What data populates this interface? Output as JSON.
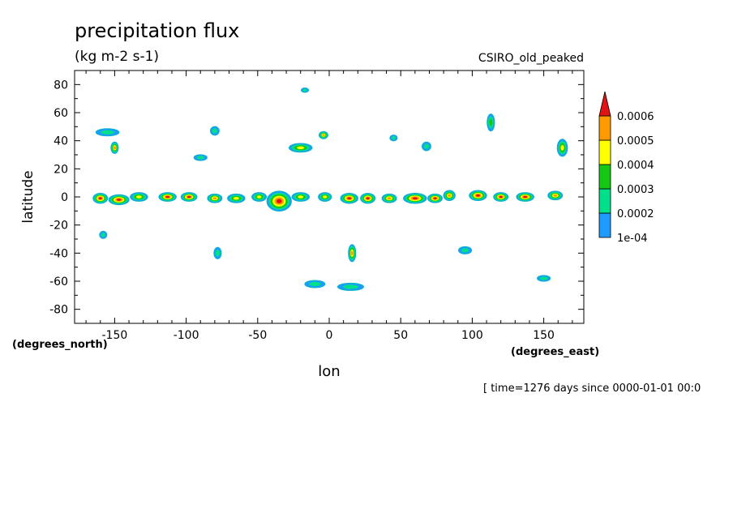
{
  "chart_data": {
    "type": "heatmap",
    "title": "precipitation flux",
    "units": "(kg m-2 s-1)",
    "model": "CSIRO_old_peaked",
    "xlabel": "lon",
    "ylabel": "latitude",
    "x_units": "(degrees_east)",
    "y_units": "(degrees_north)",
    "footer": "[ time=1276 days since 0000-01-01 00:0",
    "xlim": [
      -178,
      178
    ],
    "ylim": [
      -90,
      90
    ],
    "x_ticks": [
      -150,
      -100,
      -50,
      0,
      50,
      100,
      150
    ],
    "y_ticks": [
      80,
      60,
      40,
      20,
      0,
      -20,
      -40,
      -60,
      -80
    ],
    "x_tick_labels": [
      "-150",
      "-100",
      "-50",
      "0",
      "50",
      "100",
      "150"
    ],
    "y_tick_labels": [
      "80",
      "60",
      "40",
      "20",
      "0",
      "-20",
      "-40",
      "-60",
      "-80"
    ],
    "levels": [
      0.0001,
      0.0002,
      0.0003,
      0.0004,
      0.0005,
      0.0006
    ],
    "level_labels": [
      "1e-04",
      "0.0002",
      "0.0003",
      "0.0004",
      "0.0005",
      "0.0006"
    ],
    "colors": [
      "#1e9bff",
      "#00e08a",
      "#14c814",
      "#ffff00",
      "#ff9b00",
      "#e01414"
    ],
    "outline_color": "#00b8b8",
    "features": [
      {
        "name": "equatorial band west",
        "lon": -160,
        "lat": -1,
        "w": 8,
        "h": 5,
        "level": 5
      },
      {
        "name": "equatorial band",
        "lon": -147,
        "lat": -2,
        "w": 12,
        "h": 5,
        "level": 5
      },
      {
        "name": "equatorial band",
        "lon": -133,
        "lat": 0,
        "w": 10,
        "h": 4,
        "level": 3
      },
      {
        "name": "equatorial band",
        "lon": -113,
        "lat": 0,
        "w": 10,
        "h": 4,
        "level": 5
      },
      {
        "name": "equatorial band",
        "lon": -98,
        "lat": 0,
        "w": 9,
        "h": 4,
        "level": 5
      },
      {
        "name": "equatorial band",
        "lon": -80,
        "lat": -1,
        "w": 8,
        "h": 4,
        "level": 4
      },
      {
        "name": "equatorial band",
        "lon": -65,
        "lat": -1,
        "w": 10,
        "h": 4,
        "level": 3
      },
      {
        "name": "equatorial band",
        "lon": -49,
        "lat": 0,
        "w": 8,
        "h": 4,
        "level": 3
      },
      {
        "name": "equatorial cluster",
        "lon": -35,
        "lat": -3,
        "w": 15,
        "h": 12,
        "level": 5
      },
      {
        "name": "equatorial band",
        "lon": -20,
        "lat": 0,
        "w": 10,
        "h": 4,
        "level": 3
      },
      {
        "name": "equatorial band",
        "lon": -3,
        "lat": 0,
        "w": 7,
        "h": 4,
        "level": 3
      },
      {
        "name": "equatorial band",
        "lon": 14,
        "lat": -1,
        "w": 10,
        "h": 5,
        "level": 5
      },
      {
        "name": "equatorial band",
        "lon": 27,
        "lat": -1,
        "w": 8,
        "h": 5,
        "level": 5
      },
      {
        "name": "equatorial band",
        "lon": 42,
        "lat": -1,
        "w": 8,
        "h": 4,
        "level": 4
      },
      {
        "name": "equatorial band",
        "lon": 60,
        "lat": -1,
        "w": 14,
        "h": 5,
        "level": 5
      },
      {
        "name": "equatorial band",
        "lon": 74,
        "lat": -1,
        "w": 8,
        "h": 4,
        "level": 5
      },
      {
        "name": "equatorial band",
        "lon": 84,
        "lat": 1,
        "w": 6,
        "h": 5,
        "level": 4
      },
      {
        "name": "equatorial band",
        "lon": 104,
        "lat": 1,
        "w": 10,
        "h": 5,
        "level": 5
      },
      {
        "name": "equatorial band",
        "lon": 120,
        "lat": 0,
        "w": 8,
        "h": 4,
        "level": 5
      },
      {
        "name": "equatorial band",
        "lon": 137,
        "lat": 0,
        "w": 10,
        "h": 4,
        "level": 5
      },
      {
        "name": "equatorial band",
        "lon": 158,
        "lat": 1,
        "w": 8,
        "h": 4,
        "level": 4
      },
      {
        "name": "north pacific storm",
        "lon": -155,
        "lat": 46,
        "w": 14,
        "h": 3,
        "level": 1
      },
      {
        "name": "north pacific storm",
        "lon": -150,
        "lat": 35,
        "w": 3,
        "h": 6,
        "level": 4
      },
      {
        "name": "north america",
        "lon": -80,
        "lat": 47,
        "w": 4,
        "h": 4,
        "level": 1
      },
      {
        "name": "north america",
        "lon": -90,
        "lat": 28,
        "w": 7,
        "h": 2,
        "level": 1
      },
      {
        "name": "north atlantic storm",
        "lon": -20,
        "lat": 35,
        "w": 14,
        "h": 4,
        "level": 3
      },
      {
        "name": "north atlantic storm",
        "lon": -4,
        "lat": 44,
        "w": 4,
        "h": 3,
        "level": 4
      },
      {
        "name": "europe",
        "lon": 45,
        "lat": 42,
        "w": 3,
        "h": 2,
        "level": 1
      },
      {
        "name": "asia",
        "lon": 68,
        "lat": 36,
        "w": 4,
        "h": 4,
        "level": 1
      },
      {
        "name": "north pacific west",
        "lon": 113,
        "lat": 53,
        "w": 3,
        "h": 10,
        "level": 2
      },
      {
        "name": "north pacific east",
        "lon": 163,
        "lat": 35,
        "w": 5,
        "h": 10,
        "level": 3
      },
      {
        "name": "arctic",
        "lon": -17,
        "lat": 76,
        "w": 3,
        "h": 1,
        "level": 1
      },
      {
        "name": "south pacific",
        "lon": -158,
        "lat": -27,
        "w": 3,
        "h": 3,
        "level": 1
      },
      {
        "name": "south america",
        "lon": -78,
        "lat": -40,
        "w": 3,
        "h": 6,
        "level": 1
      },
      {
        "name": "south atlantic",
        "lon": 16,
        "lat": -40,
        "w": 3,
        "h": 10,
        "level": 4
      },
      {
        "name": "southern ocean",
        "lon": -10,
        "lat": -62,
        "w": 12,
        "h": 3,
        "level": 1
      },
      {
        "name": "southern ocean",
        "lon": 15,
        "lat": -64,
        "w": 16,
        "h": 3,
        "level": 1
      },
      {
        "name": "indian ocean",
        "lon": 95,
        "lat": -38,
        "w": 7,
        "h": 3,
        "level": 1
      },
      {
        "name": "south pacific east",
        "lon": 150,
        "lat": -58,
        "w": 7,
        "h": 2,
        "level": 1
      }
    ]
  }
}
